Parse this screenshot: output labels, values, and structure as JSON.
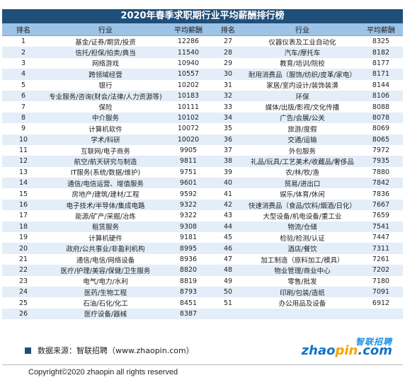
{
  "title": "2020年春季求职期行业平均薪酬排行榜",
  "headers": [
    "排名",
    "行业",
    "平均薪酬",
    "排名",
    "行业",
    "平均薪酬"
  ],
  "rows": [
    [
      [
        "1",
        "基金/证券/期货/投资",
        "12286"
      ],
      [
        "27",
        "仪器仪表及工业自动化",
        "8325"
      ]
    ],
    [
      [
        "2",
        "信托/担保/拍卖/典当",
        "11540"
      ],
      [
        "28",
        "汽车/摩托车",
        "8182"
      ]
    ],
    [
      [
        "3",
        "网络游戏",
        "10940"
      ],
      [
        "29",
        "教育/培训/院校",
        "8177"
      ]
    ],
    [
      [
        "4",
        "跨领域经营",
        "10557"
      ],
      [
        "30",
        "耐用消费品（服饰/纺织/皮革/家电）",
        "8171"
      ]
    ],
    [
      [
        "5",
        "银行",
        "10202"
      ],
      [
        "31",
        "家居/室内设计/装饰装潢",
        "8144"
      ]
    ],
    [
      [
        "6",
        "专业服务/咨询(财会/法律/人力资源等)",
        "10183"
      ],
      [
        "32",
        "环保",
        "8106"
      ]
    ],
    [
      [
        "7",
        "保险",
        "10111"
      ],
      [
        "33",
        "媒体/出版/影视/文化传播",
        "8088"
      ]
    ],
    [
      [
        "8",
        "中介服务",
        "10102"
      ],
      [
        "34",
        "广告/会展/公关",
        "8078"
      ]
    ],
    [
      [
        "9",
        "计算机软件",
        "10072"
      ],
      [
        "35",
        "旅游/度假",
        "8069"
      ]
    ],
    [
      [
        "10",
        "学术/科研",
        "10020"
      ],
      [
        "36",
        "交通/运输",
        "8065"
      ]
    ],
    [
      [
        "11",
        "互联网/电子商务",
        "9905"
      ],
      [
        "37",
        "外包服务",
        "7972"
      ]
    ],
    [
      [
        "12",
        "航空/航天研究与制造",
        "9811"
      ],
      [
        "38",
        "礼品/玩具/工艺美术/收藏品/奢侈品",
        "7935"
      ]
    ],
    [
      [
        "13",
        "IT服务(系统/数据/维护)",
        "9751"
      ],
      [
        "39",
        "农/林/牧/渔",
        "7880"
      ]
    ],
    [
      [
        "14",
        "通信/电信运营、增值服务",
        "9601"
      ],
      [
        "40",
        "贸易/进出口",
        "7842"
      ]
    ],
    [
      [
        "15",
        "房地产/建筑/建材/工程",
        "9592"
      ],
      [
        "41",
        "娱乐/体育/休闲",
        "7836"
      ]
    ],
    [
      [
        "16",
        "电子技术/半导体/集成电路",
        "9322"
      ],
      [
        "42",
        "快速消费品（食品/饮料/烟酒/日化）",
        "7667"
      ]
    ],
    [
      [
        "17",
        "能源/矿产/采掘/冶炼",
        "9322"
      ],
      [
        "43",
        "大型设备/机电设备/重工业",
        "7659"
      ]
    ],
    [
      [
        "18",
        "租赁服务",
        "9308"
      ],
      [
        "44",
        "物流/仓储",
        "7541"
      ]
    ],
    [
      [
        "19",
        "计算机硬件",
        "9181"
      ],
      [
        "45",
        "检验/检测/认证",
        "7447"
      ]
    ],
    [
      [
        "20",
        "政府/公共事业/非盈利机构",
        "8995"
      ],
      [
        "46",
        "酒店/餐饮",
        "7311"
      ]
    ],
    [
      [
        "21",
        "通信/电信/网络设备",
        "8936"
      ],
      [
        "47",
        "加工制造（原料加工/模具）",
        "7261"
      ]
    ],
    [
      [
        "22",
        "医疗/护理/美容/保健/卫生服务",
        "8820"
      ],
      [
        "48",
        "物业管理/商业中心",
        "7202"
      ]
    ],
    [
      [
        "23",
        "电气/电力/水利",
        "8819"
      ],
      [
        "49",
        "零售/批发",
        "7180"
      ]
    ],
    [
      [
        "24",
        "医药/生物工程",
        "8793"
      ],
      [
        "50",
        "印刷/包装/造纸",
        "7091"
      ]
    ],
    [
      [
        "25",
        "石油/石化/化工",
        "8451"
      ],
      [
        "51",
        "办公用品及设备",
        "6912"
      ]
    ],
    [
      [
        "26",
        "医疗设备/器械",
        "8387"
      ],
      [
        "",
        "",
        ""
      ]
    ]
  ],
  "source": "数据来源：智联招聘（www.zhaopin.com）",
  "logo": {
    "top": "智联招聘",
    "bottom_a": "zhao",
    "bottom_b": "pin",
    "bottom_c": ".com",
    "icon": "zhaopin-logo"
  },
  "copyright": "Copyright©2020 zhaopin all rights reserved",
  "colors": {
    "title_bg": "#1f4e79",
    "header_bg": "#9dc3e6",
    "alt_row": "#e3eef8"
  }
}
